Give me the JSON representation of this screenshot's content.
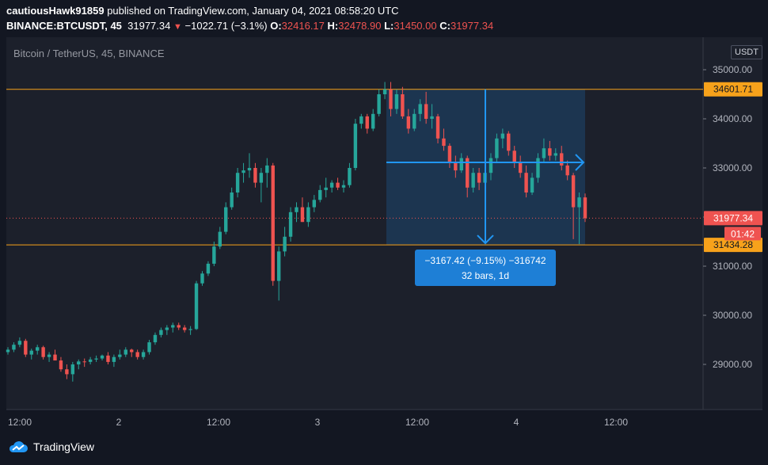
{
  "header": {
    "user": "cautiousHawk91859",
    "published": "published on TradingView.com, January 04, 2021 08:58:20 UTC",
    "symbol": "BINANCE:BTCUSDT, 45",
    "last": "31977.34",
    "change": "−1022.71 (−3.1%)",
    "o_label": "O:",
    "o": "32416.17",
    "h_label": "H:",
    "h": "32478.90",
    "l_label": "L:",
    "l": "31450.00",
    "c_label": "C:",
    "c": "31977.34"
  },
  "plot_label": "Bitcoin / TetherUS, 45, BINANCE",
  "currency_button": "USDT",
  "measure": {
    "line1": "−3167.42 (−9.15%) −316742",
    "line2": "32 bars, 1d"
  },
  "price_tags": {
    "upper_level": "34601.71",
    "current": "31977.34",
    "countdown": "01:42",
    "lower_level": "31434.28"
  },
  "footer": {
    "brand": "TradingView"
  },
  "colors": {
    "up": "#26a69a",
    "down": "#ef5350",
    "level": "#f7a21b",
    "measure": "#1e7fd6",
    "background": "#131722",
    "panel": "#1c202b"
  },
  "chart_data": {
    "type": "candlestick",
    "y_ticks": [
      "35000.00",
      "34000.00",
      "33000.00",
      "32000.00",
      "31000.00",
      "30000.00",
      "29000.00"
    ],
    "x_ticks": [
      "12:00",
      "2",
      "12:00",
      "3",
      "12:00",
      "4",
      "12:00"
    ],
    "ylim": [
      28150,
      35400
    ],
    "horizontal_levels": [
      34601.71,
      31434.28
    ],
    "current_price": 31977.34,
    "candles": [
      [
        29250,
        29350,
        29200,
        29300
      ],
      [
        29300,
        29450,
        29250,
        29400
      ],
      [
        29400,
        29550,
        29350,
        29480
      ],
      [
        29480,
        29520,
        29150,
        29200
      ],
      [
        29200,
        29320,
        29100,
        29280
      ],
      [
        29280,
        29400,
        29200,
        29350
      ],
      [
        29350,
        29380,
        29100,
        29150
      ],
      [
        29150,
        29250,
        29050,
        29200
      ],
      [
        29200,
        29300,
        29100,
        29080
      ],
      [
        29080,
        29150,
        28850,
        28900
      ],
      [
        28900,
        29000,
        28700,
        28800
      ],
      [
        28800,
        29050,
        28650,
        29000
      ],
      [
        29000,
        29100,
        28900,
        29060
      ],
      [
        29060,
        29120,
        28950,
        29050
      ],
      [
        29050,
        29150,
        29000,
        29100
      ],
      [
        29100,
        29180,
        29050,
        29120
      ],
      [
        29120,
        29200,
        29080,
        29180
      ],
      [
        29180,
        29250,
        29000,
        29050
      ],
      [
        29050,
        29200,
        28950,
        29150
      ],
      [
        29150,
        29300,
        29100,
        29200
      ],
      [
        29200,
        29350,
        29150,
        29300
      ],
      [
        29300,
        29320,
        29150,
        29250
      ],
      [
        29250,
        29300,
        29100,
        29150
      ],
      [
        29150,
        29300,
        29100,
        29250
      ],
      [
        29250,
        29500,
        29200,
        29450
      ],
      [
        29450,
        29650,
        29400,
        29600
      ],
      [
        29600,
        29750,
        29550,
        29700
      ],
      [
        29700,
        29800,
        29600,
        29750
      ],
      [
        29750,
        29850,
        29650,
        29800
      ],
      [
        29800,
        29850,
        29700,
        29750
      ],
      [
        29750,
        29800,
        29650,
        29700
      ],
      [
        29700,
        29780,
        29600,
        29720
      ],
      [
        29720,
        30700,
        29700,
        30650
      ],
      [
        30650,
        30900,
        30600,
        30850
      ],
      [
        30850,
        31100,
        30800,
        31050
      ],
      [
        31050,
        31500,
        31000,
        31400
      ],
      [
        31400,
        31800,
        31350,
        31700
      ],
      [
        31700,
        32300,
        31650,
        32200
      ],
      [
        32200,
        32600,
        32150,
        32500
      ],
      [
        32500,
        33000,
        32400,
        32900
      ],
      [
        32900,
        33100,
        32700,
        32950
      ],
      [
        32950,
        33300,
        32800,
        33000
      ],
      [
        33000,
        33100,
        32600,
        32700
      ],
      [
        32700,
        33000,
        32300,
        32900
      ],
      [
        32900,
        33200,
        32600,
        33050
      ],
      [
        33050,
        33100,
        30600,
        30700
      ],
      [
        30700,
        31400,
        30300,
        31300
      ],
      [
        31300,
        31800,
        31200,
        31600
      ],
      [
        31600,
        32200,
        31500,
        32100
      ],
      [
        32100,
        32300,
        31900,
        32200
      ],
      [
        32200,
        32400,
        31900,
        31900
      ],
      [
        31900,
        32300,
        31800,
        32200
      ],
      [
        32200,
        32450,
        32100,
        32350
      ],
      [
        32350,
        32650,
        32300,
        32550
      ],
      [
        32550,
        32800,
        32400,
        32600
      ],
      [
        32600,
        32750,
        32500,
        32700
      ],
      [
        32700,
        32800,
        32550,
        32600
      ],
      [
        32600,
        32750,
        32500,
        32650
      ],
      [
        32650,
        33100,
        32600,
        33000
      ],
      [
        33000,
        34000,
        32950,
        33900
      ],
      [
        33900,
        34100,
        33800,
        34050
      ],
      [
        34050,
        34100,
        33700,
        33800
      ],
      [
        33800,
        34200,
        33750,
        34100
      ],
      [
        34100,
        34600,
        34050,
        34500
      ],
      [
        34500,
        34750,
        34400,
        34600
      ],
      [
        34600,
        34750,
        34050,
        34200
      ],
      [
        34200,
        34600,
        34100,
        34500
      ],
      [
        34500,
        34650,
        34000,
        34050
      ],
      [
        34050,
        34200,
        33700,
        33800
      ],
      [
        33800,
        34200,
        33750,
        34100
      ],
      [
        34100,
        34400,
        33950,
        34300
      ],
      [
        34300,
        34550,
        33900,
        34000
      ],
      [
        34000,
        34300,
        33800,
        34050
      ],
      [
        34050,
        34100,
        33500,
        33600
      ],
      [
        33600,
        33800,
        33350,
        33450
      ],
      [
        33450,
        33500,
        33000,
        33100
      ],
      [
        33100,
        33250,
        32800,
        32950
      ],
      [
        32950,
        33300,
        32900,
        33200
      ],
      [
        33200,
        33250,
        32400,
        32600
      ],
      [
        32600,
        33000,
        32500,
        32900
      ],
      [
        32900,
        33000,
        32550,
        32700
      ],
      [
        32700,
        33000,
        32500,
        32900
      ],
      [
        32900,
        33300,
        32750,
        33200
      ],
      [
        33200,
        33700,
        33100,
        33600
      ],
      [
        33600,
        33800,
        33400,
        33700
      ],
      [
        33700,
        33750,
        33250,
        33350
      ],
      [
        33350,
        33450,
        33000,
        33100
      ],
      [
        33100,
        33250,
        32800,
        32900
      ],
      [
        32900,
        33050,
        32400,
        32500
      ],
      [
        32500,
        32900,
        32450,
        32800
      ],
      [
        32800,
        33300,
        32700,
        33200
      ],
      [
        33200,
        33600,
        33100,
        33400
      ],
      [
        33400,
        33550,
        33150,
        33250
      ],
      [
        33250,
        33400,
        33150,
        33300
      ],
      [
        33300,
        33450,
        32950,
        33050
      ],
      [
        33050,
        33150,
        32750,
        32850
      ],
      [
        32850,
        32900,
        31550,
        32200
      ],
      [
        32200,
        32500,
        31450,
        32400
      ],
      [
        32400,
        32480,
        31900,
        31977
      ]
    ]
  }
}
